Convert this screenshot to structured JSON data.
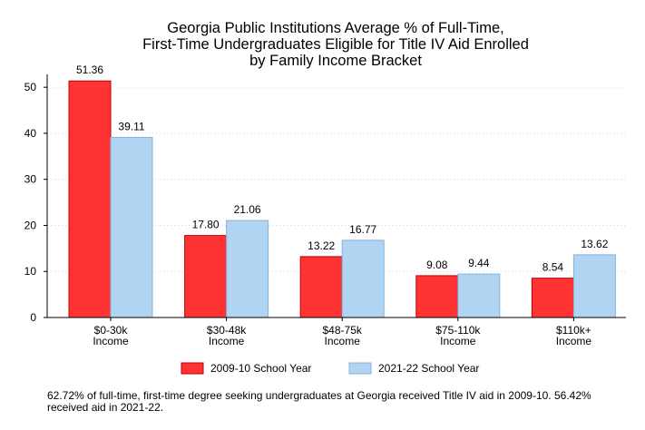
{
  "chart_data": {
    "type": "bar",
    "title_lines": [
      "Georgia Public Institutions Average % of Full-Time,",
      "First-Time Undergraduates Eligible for Title IV Aid Enrolled",
      "by Family Income Bracket"
    ],
    "categories": [
      [
        "$0-30k",
        "Income"
      ],
      [
        "$30-48k",
        "Income"
      ],
      [
        "$48-75k",
        "Income"
      ],
      [
        "$75-110k",
        "Income"
      ],
      [
        "$110k+",
        "Income"
      ]
    ],
    "series": [
      {
        "name": "2009-10 School Year",
        "color": "#ff3333",
        "stroke": "#c00000",
        "values": [
          51.36,
          17.8,
          13.22,
          9.08,
          8.54
        ],
        "labels": [
          "51.36",
          "17.80",
          "13.22",
          "9.08",
          "8.54"
        ]
      },
      {
        "name": "2021-22 School Year",
        "color": "#b0d4f1",
        "stroke": "#84b4dc",
        "values": [
          39.11,
          21.06,
          16.77,
          9.44,
          13.62
        ],
        "labels": [
          "39.11",
          "21.06",
          "16.77",
          "9.44",
          "13.62"
        ]
      }
    ],
    "ylim": [
      0,
      52
    ],
    "yticks": [
      0,
      10,
      20,
      30,
      40,
      50
    ],
    "xlabel": "",
    "ylabel": "",
    "grid": true,
    "legend_position": "bottom"
  },
  "note": "62.72% of full-time, first-time degree seeking undergraduates at Georgia received Title IV aid in 2009-10. 56.42% received aid in 2021-22."
}
